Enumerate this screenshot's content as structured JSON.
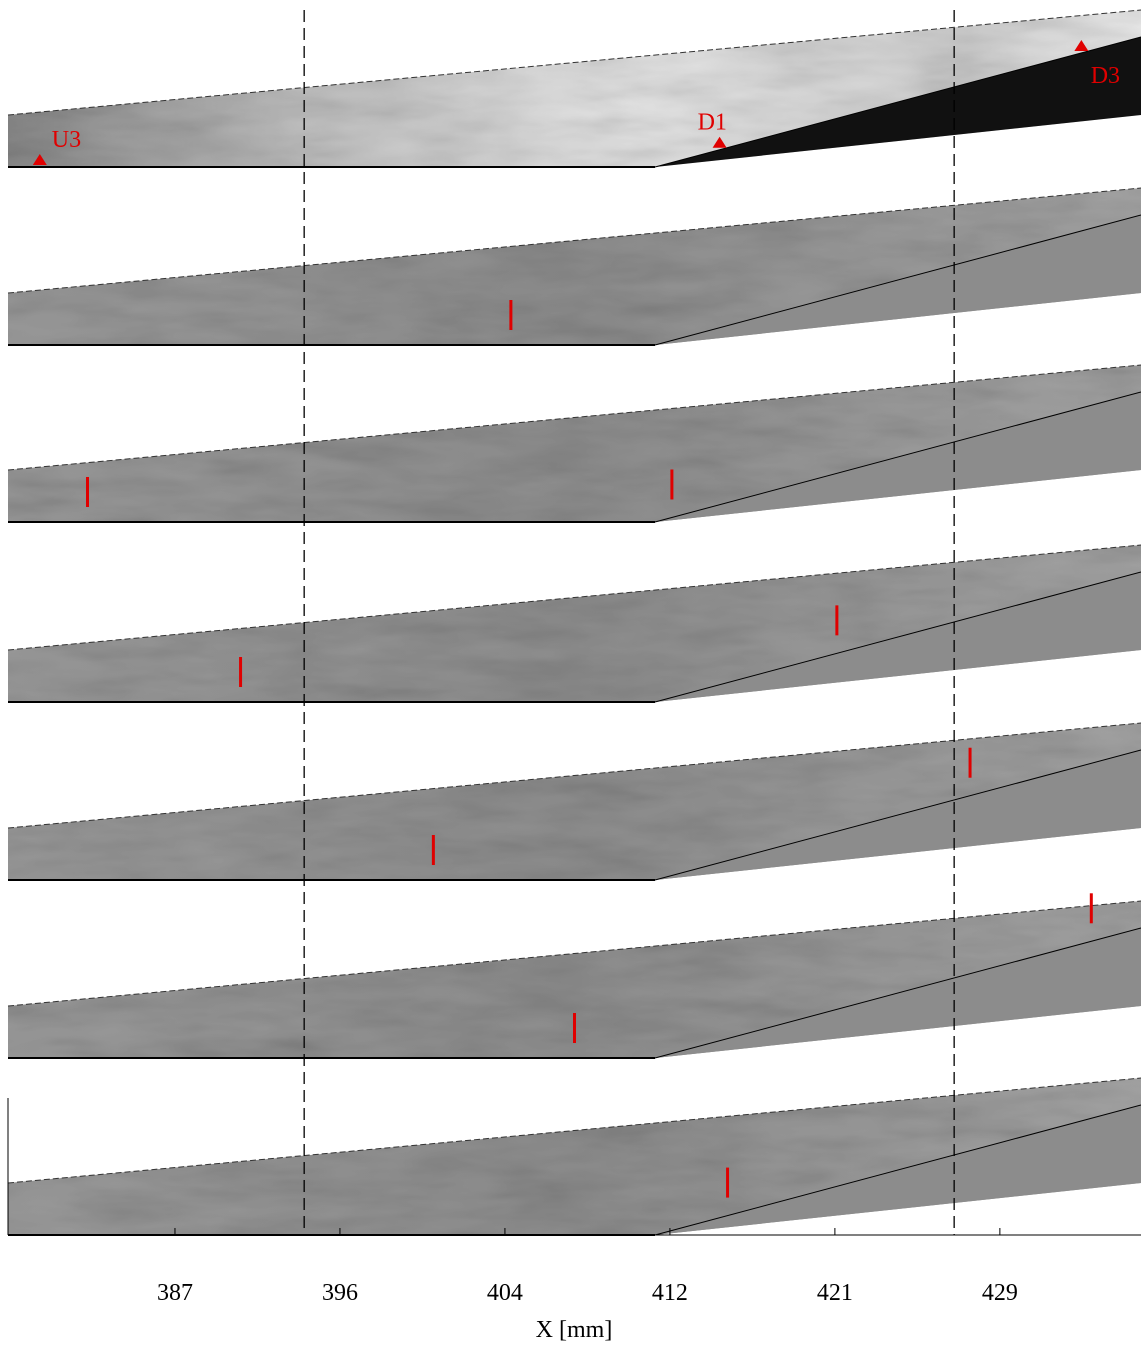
{
  "chart_data": {
    "type": "image-strip",
    "xlabel": "X [mm]",
    "xlim": [
      379,
      436
    ],
    "xticks": [
      {
        "value": 387.4,
        "label": "387"
      },
      {
        "value": 395.7,
        "label": "396"
      },
      {
        "value": 404.0,
        "label": "404"
      },
      {
        "value": 412.3,
        "label": "412"
      },
      {
        "value": 420.6,
        "label": "421"
      },
      {
        "value": 428.9,
        "label": "429"
      }
    ],
    "reference_lines": [
      393.9,
      426.6
    ],
    "sensor_color": "#e00000",
    "sensors": [
      {
        "name": "U3",
        "x": 380.6
      },
      {
        "name": "D1",
        "x": 414.8
      },
      {
        "name": "D3",
        "x": 433.0
      }
    ],
    "marker_color": "#e00000",
    "feature_markers": [
      [],
      [
        404.3
      ],
      [
        383.0,
        412.4
      ],
      [
        390.7,
        420.7
      ],
      [
        400.4,
        427.4
      ],
      [
        407.5,
        433.5
      ],
      [
        415.2
      ]
    ]
  }
}
